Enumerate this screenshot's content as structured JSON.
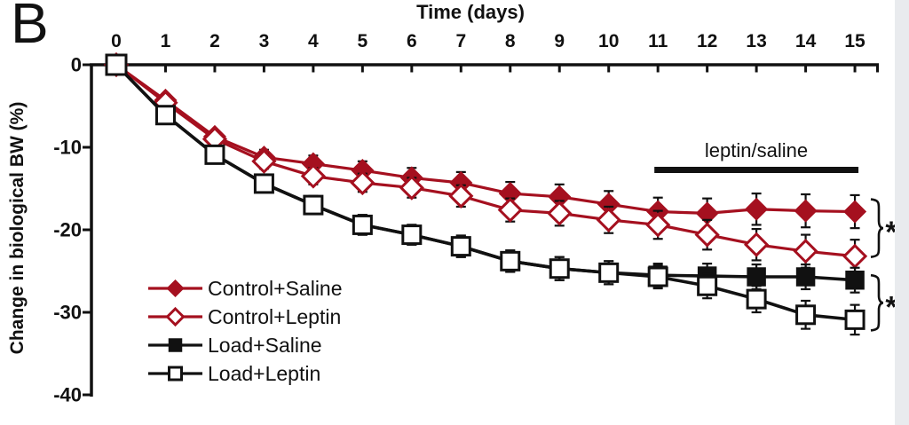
{
  "panel_label": "B",
  "colors": {
    "dark_red": "#A5101F",
    "black": "#111111",
    "white": "#ffffff",
    "page_edge_strip": "#e9ebee"
  },
  "chart_data": {
    "type": "line",
    "xlabel": "Time (days)",
    "ylabel": "Change in biological BW (%)",
    "x": [
      0,
      1,
      2,
      3,
      4,
      5,
      6,
      7,
      8,
      9,
      10,
      11,
      12,
      13,
      14,
      15
    ],
    "x_ticks": [
      "0",
      "1",
      "2",
      "3",
      "4",
      "5",
      "6",
      "7",
      "8",
      "9",
      "10",
      "11",
      "12",
      "13",
      "14",
      "15"
    ],
    "y_ticks": [
      "0",
      "-10",
      "-20",
      "-30",
      "-40"
    ],
    "y_tick_values": [
      0,
      -10,
      -20,
      -30,
      -40
    ],
    "xlim": [
      0,
      15
    ],
    "ylim": [
      -40,
      0
    ],
    "grid": false,
    "series": [
      {
        "name": "Control+Saline",
        "color_key": "dark_red",
        "marker": "diamond",
        "fill": "filled",
        "values": [
          0,
          -4.3,
          -8.7,
          -11.2,
          -12.0,
          -12.8,
          -13.7,
          -14.3,
          -15.6,
          -16.0,
          -16.9,
          -17.8,
          -18.0,
          -17.5,
          -17.7,
          -17.8
        ],
        "errors": [
          0.3,
          0.5,
          0.7,
          0.9,
          1.0,
          1.1,
          1.2,
          1.3,
          1.4,
          1.5,
          1.6,
          1.7,
          1.8,
          1.9,
          2.0,
          2.0
        ]
      },
      {
        "name": "Control+Leptin",
        "color_key": "dark_red",
        "marker": "diamond",
        "fill": "open",
        "values": [
          0,
          -4.6,
          -9.0,
          -11.7,
          -13.5,
          -14.3,
          -14.9,
          -15.9,
          -17.6,
          -18.0,
          -18.8,
          -19.4,
          -20.6,
          -21.8,
          -22.6,
          -23.2
        ],
        "errors": [
          0.3,
          0.5,
          0.7,
          0.9,
          1.0,
          1.1,
          1.2,
          1.3,
          1.4,
          1.5,
          1.6,
          1.7,
          1.8,
          1.9,
          2.0,
          2.0
        ]
      },
      {
        "name": "Load+Saline",
        "color_key": "black",
        "marker": "square",
        "fill": "filled",
        "values": [
          0,
          -6.1,
          -10.9,
          -14.4,
          -17.0,
          -19.4,
          -20.6,
          -22.0,
          -23.8,
          -24.7,
          -25.2,
          -25.5,
          -25.6,
          -25.7,
          -25.7,
          -26.1
        ],
        "errors": [
          0.3,
          0.5,
          0.8,
          1.0,
          1.1,
          1.2,
          1.2,
          1.3,
          1.3,
          1.4,
          1.4,
          1.4,
          1.5,
          1.5,
          1.5,
          1.5
        ]
      },
      {
        "name": "Load+Leptin",
        "color_key": "black",
        "marker": "square",
        "fill": "open",
        "values": [
          0,
          -6.1,
          -10.9,
          -14.4,
          -17.0,
          -19.4,
          -20.6,
          -22.0,
          -23.8,
          -24.7,
          -25.2,
          -25.7,
          -26.8,
          -28.4,
          -30.3,
          -30.9
        ],
        "errors": [
          0.3,
          0.5,
          0.8,
          1.0,
          1.1,
          1.2,
          1.2,
          1.3,
          1.3,
          1.4,
          1.4,
          1.4,
          1.5,
          1.6,
          1.7,
          1.8
        ]
      }
    ],
    "legend": {
      "position": "inside-lower-left",
      "items": [
        "Control+Saline",
        "Control+Leptin",
        "Load+Saline",
        "Load+Leptin"
      ]
    },
    "annotations": {
      "treatment_bar": {
        "label": "leptin/saline",
        "day_start": 11,
        "day_end": 15
      },
      "significance": [
        {
          "symbol": "*",
          "pair": [
            "Control+Saline",
            "Control+Leptin"
          ],
          "y_top": -16.3,
          "y_bottom": -23.3
        },
        {
          "symbol": "*",
          "pair": [
            "Load+Saline",
            "Load+Leptin"
          ],
          "y_top": -25.5,
          "y_bottom": -32.2
        }
      ]
    }
  }
}
